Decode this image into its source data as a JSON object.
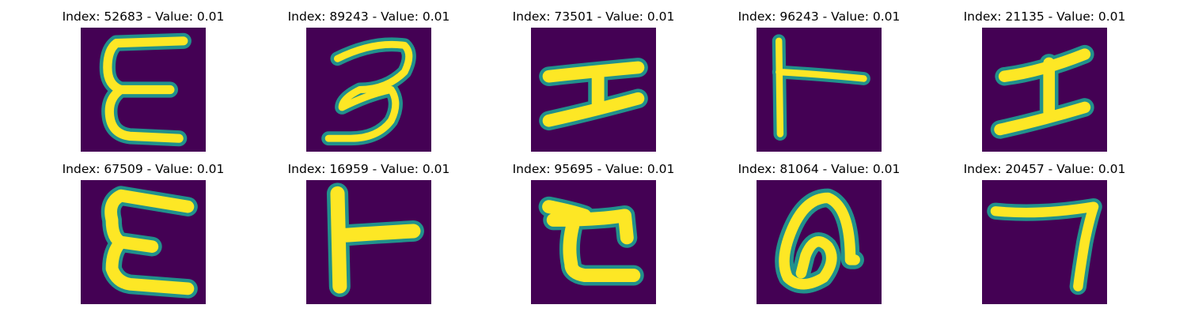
{
  "colormap": {
    "background": "#440154",
    "mid": "#21918c",
    "edge": "#5ec962",
    "stroke": "#fde725"
  },
  "panels": [
    {
      "title": "Index: 52683 - Value: 0.01",
      "glyph": "E-shape"
    },
    {
      "title": "Index: 89243 - Value: 0.01",
      "glyph": "3-shape"
    },
    {
      "title": "Index: 73501 - Value: 0.01",
      "glyph": "I-shape"
    },
    {
      "title": "Index: 96243 - Value: 0.01",
      "glyph": "T-sideways"
    },
    {
      "title": "Index: 21135 - Value: 0.01",
      "glyph": "I-shape"
    },
    {
      "title": "Index: 67509 - Value: 0.01",
      "glyph": "E-shape"
    },
    {
      "title": "Index: 16959 - Value: 0.01",
      "glyph": "T-sideways"
    },
    {
      "title": "Index: 95695 - Value: 0.01",
      "glyph": "t-shape"
    },
    {
      "title": "Index: 81064 - Value: 0.01",
      "glyph": "loop-shape"
    },
    {
      "title": "Index: 20457 - Value: 0.01",
      "glyph": "7-shape"
    }
  ]
}
